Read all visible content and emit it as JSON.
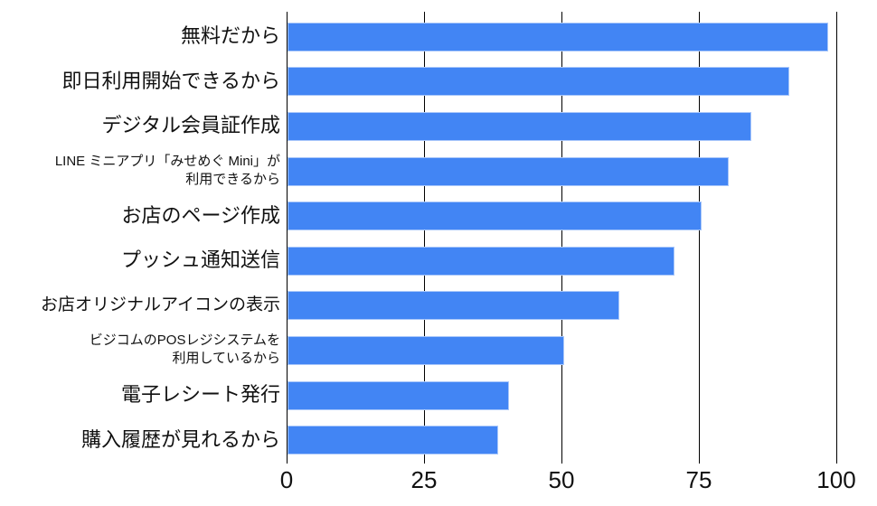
{
  "chart_data": {
    "type": "bar",
    "orientation": "horizontal",
    "title": "",
    "xlabel": "",
    "ylabel": "",
    "xlim": [
      0,
      100
    ],
    "x_ticks": [
      0,
      25,
      50,
      75,
      100
    ],
    "grid": true,
    "legend": "none",
    "bar_color": "#4285f4",
    "bar_border_color": "#a9c7fa",
    "axis_color": "#000000",
    "text_color": "#111111",
    "categories": [
      [
        "無料だから"
      ],
      [
        "即日利用開始できるから"
      ],
      [
        "デジタル会員証作成"
      ],
      [
        "LINE ミニアプリ「みせめぐ Mini」が",
        "利用できるから"
      ],
      [
        "お店のページ作成"
      ],
      [
        "プッシュ通知送信"
      ],
      [
        "お店オリジナルアイコンの表示"
      ],
      [
        "ビジコムのPOSレジシステムを",
        "利用しているから"
      ],
      [
        "電子レシート発行"
      ],
      [
        "購入履歴が見れるから"
      ]
    ],
    "values": [
      98,
      91,
      84,
      80,
      75,
      70,
      60,
      50,
      40,
      38
    ]
  }
}
